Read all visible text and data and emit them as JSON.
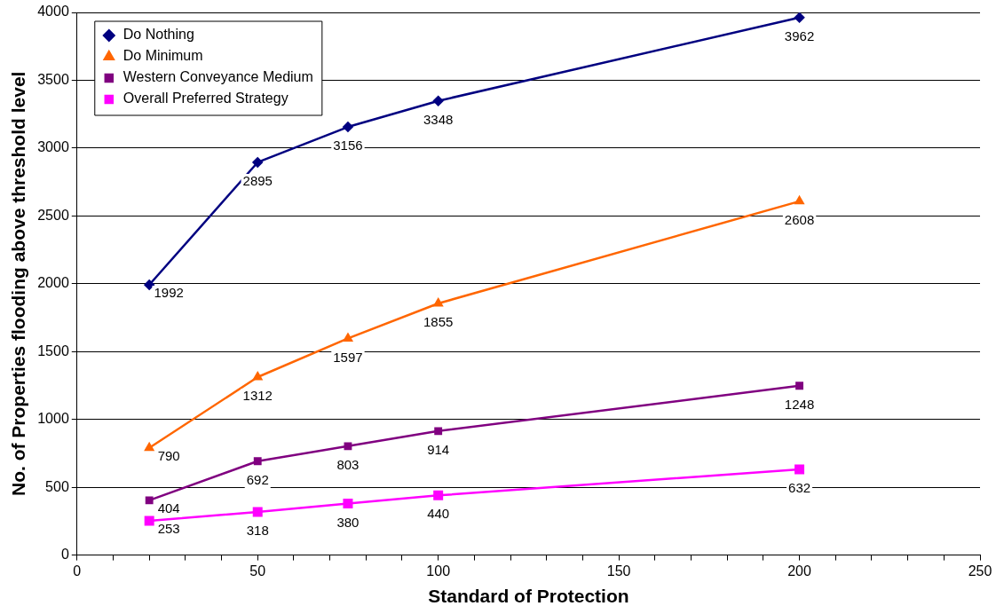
{
  "chart_data": {
    "type": "line",
    "xlabel": "Standard of Protection",
    "ylabel": "No. of Properties flooding above threshold level",
    "x": [
      20,
      50,
      75,
      100,
      200
    ],
    "series": [
      {
        "name": "Do Nothing",
        "color": "#000080",
        "marker": "diamond",
        "values": [
          1992,
          2895,
          3156,
          3348,
          3962
        ]
      },
      {
        "name": "Do Minimum",
        "color": "#ff6600",
        "marker": "triangle",
        "values": [
          790,
          1312,
          1597,
          1855,
          2608
        ]
      },
      {
        "name": "Western Conveyance Medium",
        "color": "#800080",
        "marker": "square",
        "values": [
          404,
          692,
          803,
          914,
          1248
        ]
      },
      {
        "name": "Overall Preferred Strategy",
        "color": "#ff00ff",
        "marker": "square",
        "values": [
          253,
          318,
          380,
          440,
          632
        ]
      }
    ],
    "xlim": [
      0,
      250
    ],
    "xticks": [
      0,
      {
        "value": 10,
        "label": null
      },
      {
        "value": 20,
        "label": null
      },
      {
        "value": 30,
        "label": null
      },
      {
        "value": 40,
        "label": null
      },
      50,
      {
        "value": 60,
        "label": null
      },
      {
        "value": 70,
        "label": null
      },
      {
        "value": 80,
        "label": null
      },
      {
        "value": 90,
        "label": null
      },
      100,
      {
        "value": 110,
        "label": null
      },
      {
        "value": 120,
        "label": null
      },
      {
        "value": 130,
        "label": null
      },
      {
        "value": 140,
        "label": null
      },
      150,
      {
        "value": 160,
        "label": null
      },
      {
        "value": 170,
        "label": null
      },
      {
        "value": 180,
        "label": null
      },
      {
        "value": 190,
        "label": null
      },
      200,
      {
        "value": 210,
        "label": null
      },
      {
        "value": 220,
        "label": null
      },
      {
        "value": 230,
        "label": null
      },
      {
        "value": 240,
        "label": null
      },
      250
    ],
    "ylim": [
      0,
      4000
    ],
    "yticks": [
      0,
      500,
      1000,
      1500,
      2000,
      2500,
      3000,
      3500,
      4000
    ],
    "grid": "y",
    "legend": "top left",
    "data_labels": true,
    "line_style": "solid"
  }
}
